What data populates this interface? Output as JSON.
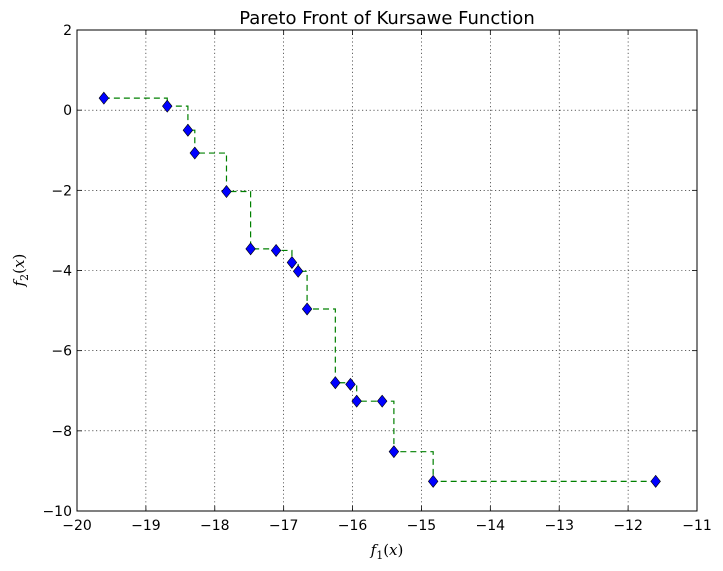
{
  "chart_data": {
    "type": "scatter",
    "title": "Pareto Front of Kursawe Function",
    "xlabel": "f_1(x)",
    "ylabel": "f_2(x)",
    "xlim": [
      -20,
      -11
    ],
    "ylim": [
      -10,
      2
    ],
    "xticks": [
      -20,
      -19,
      -18,
      -17,
      -16,
      -15,
      -14,
      -13,
      -12,
      -11
    ],
    "yticks": [
      -10,
      -8,
      -6,
      -4,
      -2,
      0,
      2
    ],
    "xtick_labels": [
      "−20",
      "−19",
      "−18",
      "−17",
      "−16",
      "−15",
      "−14",
      "−13",
      "−12",
      "−11"
    ],
    "ytick_labels": [
      "−10",
      "−8",
      "−6",
      "−4",
      "−2",
      "0",
      "2"
    ],
    "grid": true,
    "colors": {
      "marker": "#0000ff",
      "step_line": "#008000"
    },
    "marker": "diamond",
    "step_line_style": "dashed",
    "series": [
      {
        "x": [
          -19.61,
          -18.69,
          -18.39,
          -18.29,
          -17.83,
          -17.48,
          -17.11,
          -16.88,
          -16.79,
          -16.66,
          -16.25,
          -16.03,
          -15.94,
          -15.57,
          -15.4,
          -14.83,
          -11.6
        ],
        "y": [
          0.3,
          0.1,
          -0.5,
          -1.07,
          -2.03,
          -3.46,
          -3.5,
          -3.8,
          -4.02,
          -4.96,
          -6.8,
          -6.84,
          -7.26,
          -7.26,
          -8.52,
          -9.26,
          -9.26
        ]
      }
    ]
  }
}
